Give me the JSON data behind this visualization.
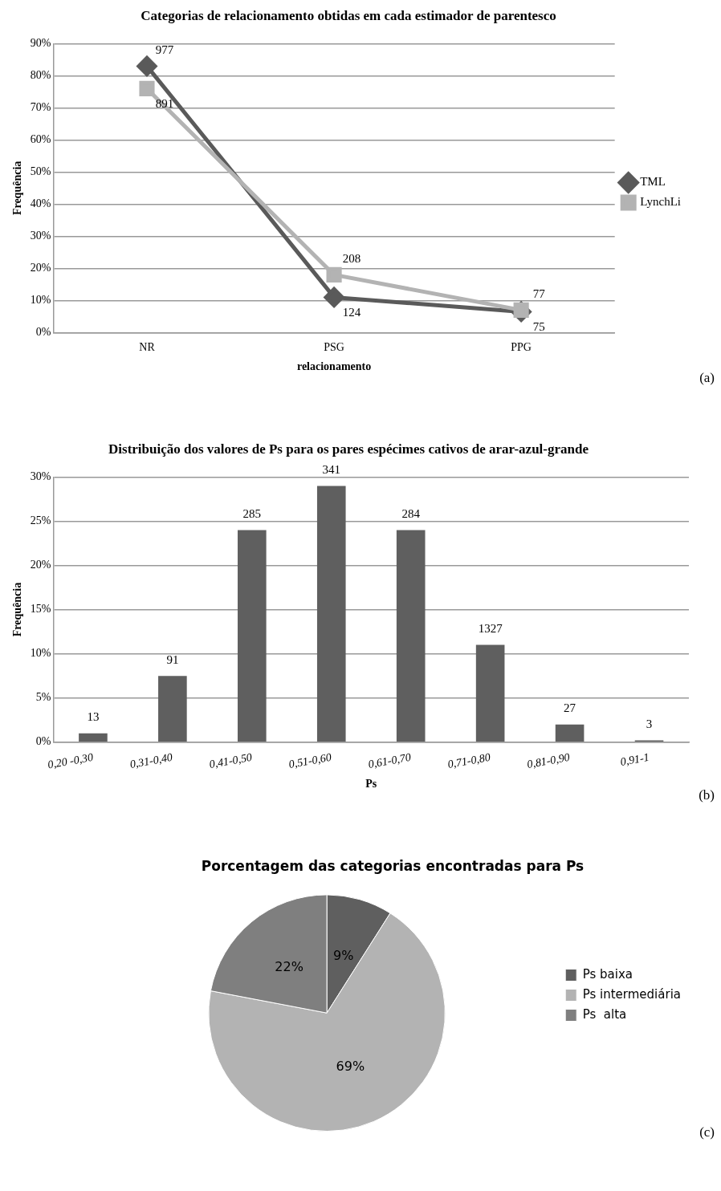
{
  "chart_data": [
    {
      "type": "line",
      "title": "Categorias de relacionamento obtidas em cada estimador de parentesco",
      "xlabel": "relacionamento",
      "ylabel": "Frequência",
      "categories": [
        "NR",
        "PSG",
        "PPG"
      ],
      "series": [
        {
          "name": "TML",
          "color": "#5a5a5a",
          "marker": "diamond",
          "values": [
            83,
            11,
            6.5
          ]
        },
        {
          "name": "LynchLi",
          "color": "#b3b3b3",
          "marker": "square",
          "values": [
            76,
            18,
            7
          ]
        }
      ],
      "ylim": [
        0,
        90
      ],
      "yticks": [
        {
          "value": 0,
          "label": "0%"
        },
        {
          "value": 10,
          "label": "10%"
        },
        {
          "value": 20,
          "label": "20%"
        },
        {
          "value": 30,
          "label": "30%"
        },
        {
          "value": 40,
          "label": "40%"
        },
        {
          "value": 50,
          "label": "50%"
        },
        {
          "value": 60,
          "label": "60%"
        },
        {
          "value": 70,
          "label": "70%"
        },
        {
          "value": 80,
          "label": "80%"
        },
        {
          "value": 90,
          "label": "90%"
        }
      ],
      "grid": "y",
      "legend": "right",
      "line_style": "solid",
      "annotations": [
        {
          "text": "977",
          "x": "NR",
          "y": 83
        },
        {
          "text": "124",
          "x": "PSG",
          "y": 11
        },
        {
          "text": "75",
          "x": "PPG",
          "y": 6.5
        },
        {
          "text": "891",
          "x": "NR",
          "y": 76
        },
        {
          "text": "208",
          "x": "PSG",
          "y": 18
        },
        {
          "text": "77",
          "x": "PPG",
          "y": 7
        },
        "(a)"
      ]
    },
    {
      "type": "bar",
      "title": "Distribuição dos valores de Ps para os pares espécimes cativos de arar-azul-grande",
      "xlabel": "Ps",
      "ylabel": "Frequência",
      "categories": [
        "0,20 -0,30",
        "0,31-0,40",
        "0,41-0,50",
        "0,51-0,60",
        "0,61-0,70",
        "0,71-0,80",
        "0,81-0,90",
        "0,91-1"
      ],
      "values": [
        1,
        7.5,
        24,
        29,
        24,
        11,
        2,
        0.2
      ],
      "color": "#5f5f5f",
      "ylim": [
        0,
        30
      ],
      "yticks": [
        {
          "value": 0,
          "label": "0%"
        },
        {
          "value": 5,
          "label": "5%"
        },
        {
          "value": 10,
          "label": "10%"
        },
        {
          "value": 15,
          "label": "15%"
        },
        {
          "value": 20,
          "label": "20%"
        },
        {
          "value": 25,
          "label": "25%"
        },
        {
          "value": 30,
          "label": "30%"
        }
      ],
      "grid": "y",
      "legend": false,
      "annotations": [
        "13",
        "91",
        "285",
        "341",
        "284",
        "1327",
        "27",
        "3",
        "(b)"
      ]
    },
    {
      "type": "pie",
      "title": "Porcentagem das categorias encontradas para Ps",
      "categories": [
        "Ps baixa",
        "Ps intermediária",
        "Ps  alta"
      ],
      "values": [
        9,
        69,
        22
      ],
      "colors": [
        "#5f5f5f",
        "#b3b3b3",
        "#7f7f7f"
      ],
      "value_labels": [
        "9%",
        "69%",
        "22%"
      ],
      "legend": "right",
      "annotations": [
        "(c)"
      ]
    }
  ]
}
